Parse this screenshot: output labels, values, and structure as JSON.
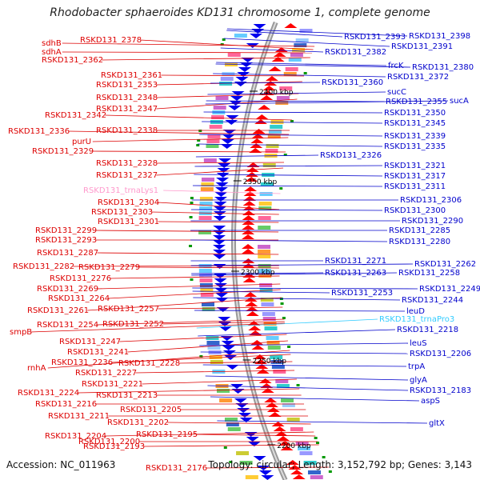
{
  "title": "Rhodobacter sphaeroides KD131 chromosome 1, complete genome",
  "accession": "Accession: NC_011963",
  "info": "Topology: circular; Length: 3,152,792 bp; Genes: 3,143",
  "colors": {
    "left_label": "#dd0000",
    "right_label": "#0000cc",
    "trna": "#ff99cc",
    "trna_right": "#33ccff",
    "backbone": "#999999"
  },
  "kbp_markers": [
    "2400 kbp",
    "2350 kbp",
    "2300 kbp",
    "2250 kbp",
    "2200 kbp"
  ],
  "left_labels": [
    "RSKD131_2378",
    "sdhB",
    "sdhA",
    "RSKD131_2362",
    "RSKD131_2361",
    "RSKD131_2353",
    "RSKD131_2348",
    "RSKD131_2347",
    "RSKD131_2342",
    "RSKD131_2336",
    "RSKD131_2338",
    "purU",
    "RSKD131_2329",
    "RSKD131_2328",
    "RSKD131_2327",
    "RSKD131_trnaLys1",
    "RSKD131_2304",
    "RSKD131_2303",
    "RSKD131_2301",
    "RSKD131_2299",
    "RSKD131_2293",
    "RSKD131_2287",
    "RSKD131_2282",
    "RSKD131_2279",
    "RSKD131_2276",
    "RSKD131_2269",
    "RSKD131_2264",
    "RSKD131_2261",
    "RSKD131_2257",
    "smpB",
    "RSKD131_2254",
    "RSKD131_2252",
    "RSKD131_2247",
    "RSKD131_2241",
    "rnhA",
    "RSKD131_2236",
    "RSKD131_2228",
    "RSKD131_2227",
    "RSKD131_2221",
    "RSKD131_2224",
    "RSKD131_2213",
    "RSKD131_2216",
    "RSKD131_2205",
    "RSKD131_2211",
    "RSKD131_2202",
    "RSKD131_2204",
    "RSKD131_2195",
    "RSKD131_2200",
    "RSKD131_2193",
    "RSKD131_2176"
  ],
  "right_labels": [
    "RSKD131_2393",
    "RSKD131_2398",
    "RSKD131_2391",
    "RSKD131_2382",
    "frcK",
    "RSKD131_2380",
    "RSKD131_2372",
    "RSKD131_2360",
    "sucC",
    "RSKD131_2355",
    "sucA",
    "RSKD131_2350",
    "RSKD131_2345",
    "RSKD131_2339",
    "RSKD131_2335",
    "RSKD131_2326",
    "RSKD131_2321",
    "RSKD131_2317",
    "RSKD131_2311",
    "RSKD131_2306",
    "RSKD131_2300",
    "RSKD131_2290",
    "RSKD131_2285",
    "RSKD131_2280",
    "RSKD131_2271",
    "RSKD131_2262",
    "RSKD131_2263",
    "RSKD131_2258",
    "RSKD131_2253",
    "RSKD131_2249",
    "RSKD131_2244",
    "leuD",
    "RSKD131_trnaPro3",
    "RSKD131_2218",
    "leuS",
    "RSKD131_2206",
    "trpA",
    "glyA",
    "RSKD131_2183",
    "aspS",
    "gltX"
  ]
}
